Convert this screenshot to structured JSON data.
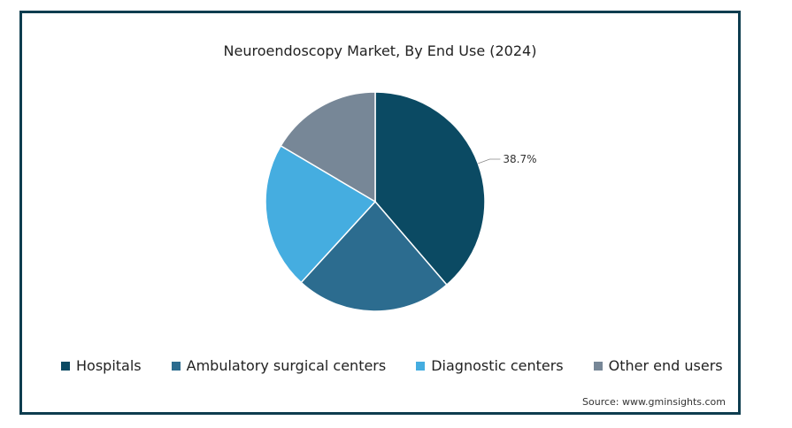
{
  "chart_data": {
    "type": "pie",
    "title": "Neuroendoscopy Market, By End Use (2024)",
    "categories": [
      "Hospitals",
      "Ambulatory surgical centers",
      "Diagnostic centers",
      "Other end users"
    ],
    "values": [
      38.7,
      23.1,
      21.7,
      16.5
    ],
    "colors": [
      "#0b4a63",
      "#2c6c8f",
      "#45ade0",
      "#778797"
    ],
    "data_labels": [
      {
        "category": "Hospitals",
        "text": "38.7%"
      }
    ],
    "legend_position": "bottom",
    "start_angle_deg": 0,
    "direction": "clockwise"
  },
  "source": "Source: www.gminsights.com"
}
